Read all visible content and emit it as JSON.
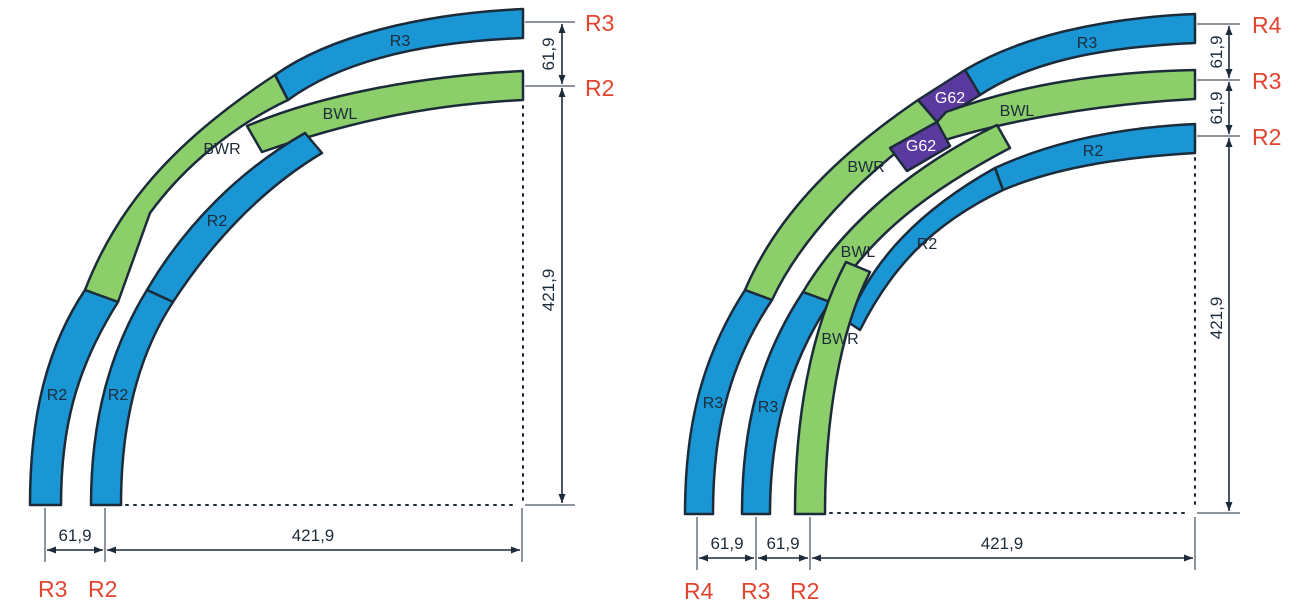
{
  "colors": {
    "blue_track": "#1a96d4",
    "green_track": "#8ccf6a",
    "purple_track": "#5b3aa0",
    "outline": "#1c2b3a",
    "radius_label": "#e2452f"
  },
  "left_diagram": {
    "segments": [
      {
        "type": "R3",
        "label": "R3"
      },
      {
        "type": "BWL",
        "label": "BWL"
      },
      {
        "type": "BWR",
        "label": "BWR"
      },
      {
        "type": "R2",
        "label": "R2"
      },
      {
        "type": "R2",
        "label": "R2"
      },
      {
        "type": "R2",
        "label": "R2"
      }
    ],
    "dimensions": {
      "spacing_v": "61,9",
      "radius_v": "421,9",
      "spacing_h": "61,9",
      "radius_h": "421,9"
    },
    "radius_labels": {
      "right_top": "R3",
      "right_bottom": "R2",
      "bottom_left": "R3",
      "bottom_right": "R2"
    }
  },
  "right_diagram": {
    "segments": [
      {
        "type": "R3",
        "label": "R3"
      },
      {
        "type": "G62",
        "label": "G62"
      },
      {
        "type": "G62",
        "label": "G62"
      },
      {
        "type": "BWL",
        "label": "BWL"
      },
      {
        "type": "BWR",
        "label": "BWR"
      },
      {
        "type": "R2",
        "label": "R2"
      },
      {
        "type": "R2",
        "label": "R2"
      },
      {
        "type": "BWL",
        "label": "BWL"
      },
      {
        "type": "BWR",
        "label": "BWR"
      },
      {
        "type": "R3",
        "label": "R3"
      },
      {
        "type": "R3",
        "label": "R3"
      }
    ],
    "dimensions": {
      "spacing_v1": "61,9",
      "spacing_v2": "61,9",
      "radius_v": "421,9",
      "spacing_h1": "61,9",
      "spacing_h2": "61,9",
      "radius_h": "421,9"
    },
    "radius_labels": {
      "right_r4": "R4",
      "right_r3": "R3",
      "right_r2": "R2",
      "bottom_r4": "R4",
      "bottom_r3": "R3",
      "bottom_r2": "R2"
    }
  }
}
